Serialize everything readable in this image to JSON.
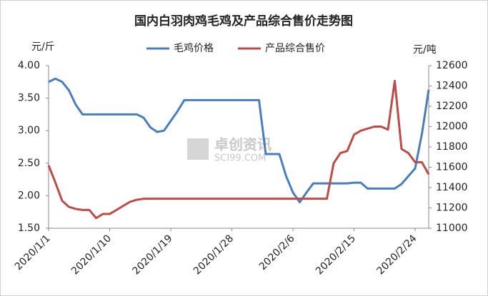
{
  "chart_data": {
    "type": "line",
    "title": "国内白羽肉鸡毛鸡及产品综合售价走势图",
    "y_label": "元/斤",
    "y2_label": "元/吨",
    "watermark": "卓创资讯",
    "watermark_sub": "SCI99.COM",
    "categories": [
      "2020/1/1",
      null,
      null,
      null,
      null,
      null,
      null,
      null,
      null,
      "2020/1/10",
      null,
      null,
      null,
      null,
      null,
      null,
      null,
      null,
      "2020/1/19",
      null,
      null,
      null,
      null,
      null,
      null,
      null,
      null,
      "2020/1/28",
      null,
      null,
      null,
      null,
      null,
      null,
      null,
      null,
      "2020/2/6",
      null,
      null,
      null,
      null,
      null,
      null,
      null,
      null,
      "2020/2/15",
      null,
      null,
      null,
      null,
      null,
      null,
      null,
      null,
      "2020/2/24",
      null,
      null
    ],
    "series": [
      {
        "name": "毛鸡价格",
        "color": "#4a7ebb",
        "axis": "y",
        "values": [
          3.75,
          3.8,
          3.75,
          3.62,
          3.4,
          3.25,
          3.25,
          3.25,
          3.25,
          3.25,
          3.25,
          3.25,
          3.25,
          3.25,
          3.2,
          3.05,
          2.98,
          3.0,
          3.15,
          3.3,
          3.47,
          3.47,
          3.47,
          3.47,
          3.47,
          3.47,
          3.47,
          3.47,
          3.47,
          3.47,
          3.47,
          3.47,
          2.64,
          2.64,
          2.64,
          2.3,
          2.05,
          1.9,
          2.05,
          2.19,
          2.19,
          2.19,
          2.19,
          2.19,
          2.19,
          2.2,
          2.2,
          2.11,
          2.11,
          2.11,
          2.11,
          2.11,
          2.18,
          2.3,
          2.42,
          2.95,
          3.63
        ]
      },
      {
        "name": "产品综合售价",
        "color": "#be4b48",
        "axis": "y2",
        "values": [
          11620,
          11450,
          11270,
          11210,
          11190,
          11180,
          11180,
          11100,
          11140,
          11140,
          11180,
          11220,
          11260,
          11280,
          11290,
          11290,
          11290,
          11290,
          11290,
          11290,
          11290,
          11290,
          11290,
          11290,
          11290,
          11290,
          11290,
          11290,
          11290,
          11290,
          11290,
          11290,
          11290,
          11290,
          11290,
          11290,
          11290,
          11290,
          11290,
          11290,
          11290,
          11290,
          11640,
          11740,
          11760,
          11920,
          11960,
          11980,
          12000,
          12000,
          11970,
          12450,
          11780,
          11740,
          11650,
          11650,
          11530
        ]
      }
    ],
    "ylim": [
      1.5,
      4.0
    ],
    "yticks": [
      {
        "value": 1.5,
        "label": "1.50"
      },
      {
        "value": 2,
        "label": "2.00"
      },
      {
        "value": 2.5,
        "label": "2.50"
      },
      {
        "value": 3,
        "label": "3.00"
      },
      {
        "value": 3.5,
        "label": "3.50"
      },
      {
        "value": 4,
        "label": "4.00"
      }
    ],
    "y2lim": [
      11000,
      12600
    ],
    "y2ticks": [
      11000,
      11200,
      11400,
      11600,
      11800,
      12000,
      12200,
      12400,
      12600
    ],
    "grid": false,
    "legend": "top"
  }
}
